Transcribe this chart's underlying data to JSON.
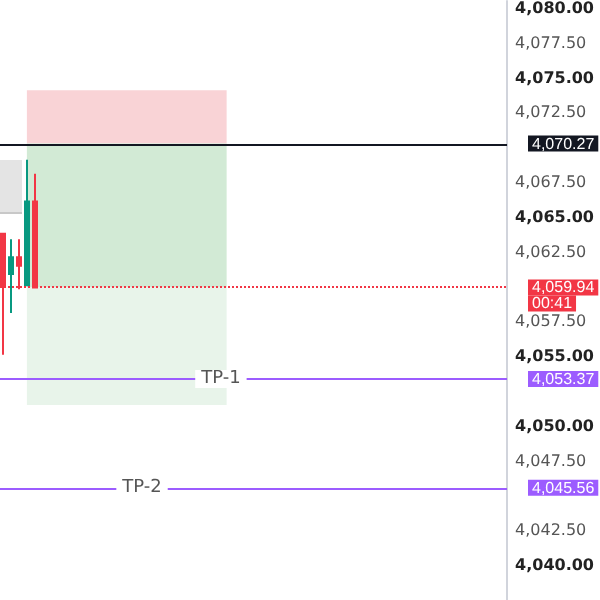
{
  "chart_data": {
    "type": "candlestick",
    "categories": [
      null,
      null,
      null,
      null,
      null,
      null,
      null,
      null,
      null,
      null,
      null,
      null,
      null,
      null,
      null,
      null,
      null,
      null,
      null,
      null,
      null,
      null,
      null,
      null,
      null,
      null,
      null,
      null,
      null,
      null,
      null,
      null,
      null,
      null,
      null,
      null,
      null,
      null,
      null,
      null,
      null,
      null,
      null,
      null,
      null,
      null,
      null,
      null,
      null,
      null,
      null,
      null,
      null,
      null,
      null,
      null,
      null,
      null,
      null,
      null,
      null,
      null,
      null,
      null,
      null,
      null
    ],
    "ohlc": [
      [
        4063.8,
        4063.8,
        4055.1,
        4060.1
      ],
      [
        4060.9,
        4063.4,
        4058.1,
        4062.1
      ],
      [
        4062.1,
        4063.4,
        4059.8,
        4061.5
      ],
      [
        4060.1,
        4069.1,
        4060.1,
        4066.1
      ],
      [
        4066.1,
        4068.1,
        4059.94,
        4059.94
      ],
      null,
      null,
      null,
      null,
      null,
      null,
      null,
      null,
      null,
      null,
      null,
      null,
      null,
      null,
      null,
      null,
      null,
      null,
      null,
      null,
      null,
      null,
      null,
      null,
      null,
      null,
      null,
      null,
      null,
      null,
      null,
      null,
      null,
      null,
      null,
      null,
      null,
      null,
      null,
      null,
      null,
      null,
      null,
      null,
      null,
      null,
      null,
      null,
      null,
      null,
      null,
      null,
      null,
      null,
      null,
      null,
      null,
      null,
      null,
      null,
      null
    ],
    "colors": [
      "#f23645",
      "#089981",
      "#f23645",
      "#089981",
      "#f23645",
      null,
      null,
      null,
      null,
      null,
      null,
      null,
      null,
      null,
      null,
      null,
      null,
      null,
      null,
      null,
      null,
      null,
      null,
      null,
      null,
      null,
      null,
      null,
      null,
      null,
      null,
      null,
      null,
      null,
      null,
      null,
      null,
      null,
      null,
      null,
      null,
      null,
      null,
      null,
      null,
      null,
      null,
      null,
      null,
      null,
      null,
      null,
      null,
      null,
      null,
      null,
      null,
      null,
      null,
      null,
      null,
      null,
      null,
      null,
      null,
      null
    ],
    "ylim": [
      4037.5,
      4080.5
    ],
    "yticks": [
      {
        "value": 4080,
        "label": "4,080.00"
      },
      {
        "value": 4077.5,
        "label": "4,077.50"
      },
      {
        "value": 4075,
        "label": "4,075.00"
      },
      {
        "value": 4072.5,
        "label": "4,072.50"
      },
      {
        "value": 4067.5,
        "label": "4,067.50"
      },
      {
        "value": 4065,
        "label": "4,065.00"
      },
      {
        "value": 4062.5,
        "label": "4,062.50"
      },
      {
        "value": 4057.5,
        "label": "4,057.50"
      },
      {
        "value": 4055,
        "label": "4,055.00"
      },
      {
        "value": 4050,
        "label": "4,050.00"
      },
      {
        "value": 4047.5,
        "label": "4,047.50"
      },
      {
        "value": 4042.5,
        "label": "4,042.50"
      },
      {
        "value": 4040,
        "label": "4,040.00"
      }
    ],
    "bands": [
      {
        "axis": "y",
        "from": 4070.27,
        "to": 4074.1,
        "label": null,
        "color": "#f9d3d6"
      },
      {
        "axis": "y",
        "from": 4059.94,
        "to": 4070.27,
        "label": null,
        "color": "#d2ead5"
      },
      {
        "axis": "y",
        "from": 4051.5,
        "to": 4059.94,
        "label": null,
        "color": "#e8f4ea"
      }
    ],
    "ref_lines": [
      {
        "axis": "y",
        "value": 4070.27,
        "label": null,
        "color": "#131722"
      },
      {
        "axis": "y",
        "value": 4059.94,
        "label": null,
        "color": "#f23645",
        "line_style": "dotted"
      },
      {
        "axis": "y",
        "value": 4053.37,
        "label": "TP-1",
        "color": "#9c5cff"
      },
      {
        "axis": "y",
        "value": 4045.56,
        "label": "TP-2",
        "color": "#9c5cff"
      }
    ],
    "annotations": [
      "4,070.27",
      "4,059.94",
      "4,053.37",
      "4,045.56",
      "00:41"
    ],
    "grid": false,
    "tick_labels": "y"
  }
}
